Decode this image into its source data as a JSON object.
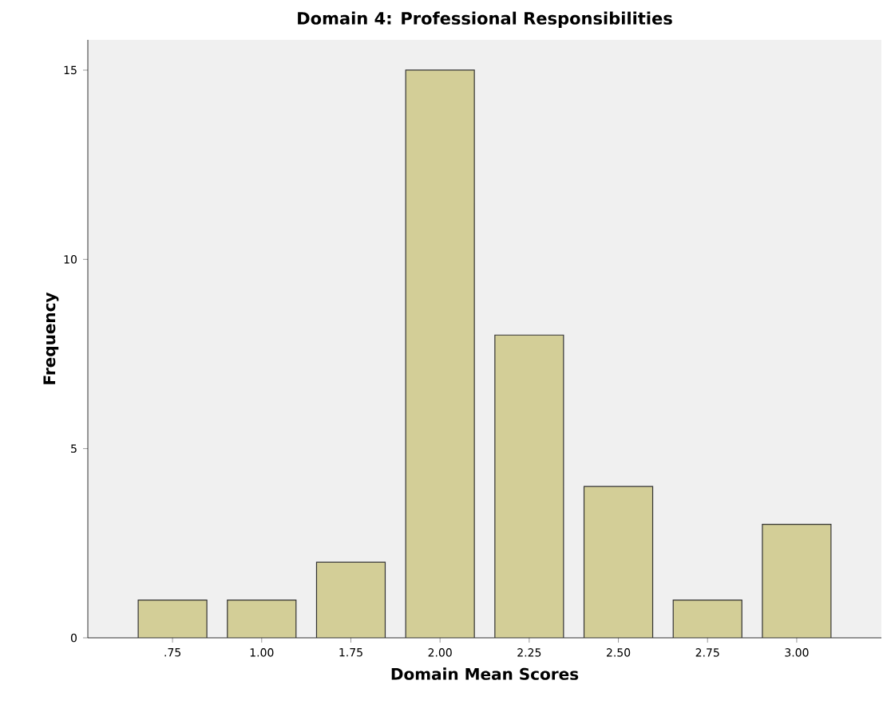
{
  "chart_data": {
    "type": "bar",
    "title": "Domain 4: Professional Responsibilities",
    "xlabel": "Domain Mean Scores",
    "ylabel": "Frequency",
    "categories": [
      ".75",
      "1.00",
      "1.75",
      "2.00",
      "2.25",
      "2.50",
      "2.75",
      "3.00"
    ],
    "values": [
      1,
      1,
      2,
      15,
      8,
      4,
      1,
      3
    ],
    "color": "#d3ce97",
    "ylim": [
      0,
      15.8
    ],
    "yticks": [
      0,
      5,
      10,
      15
    ]
  }
}
